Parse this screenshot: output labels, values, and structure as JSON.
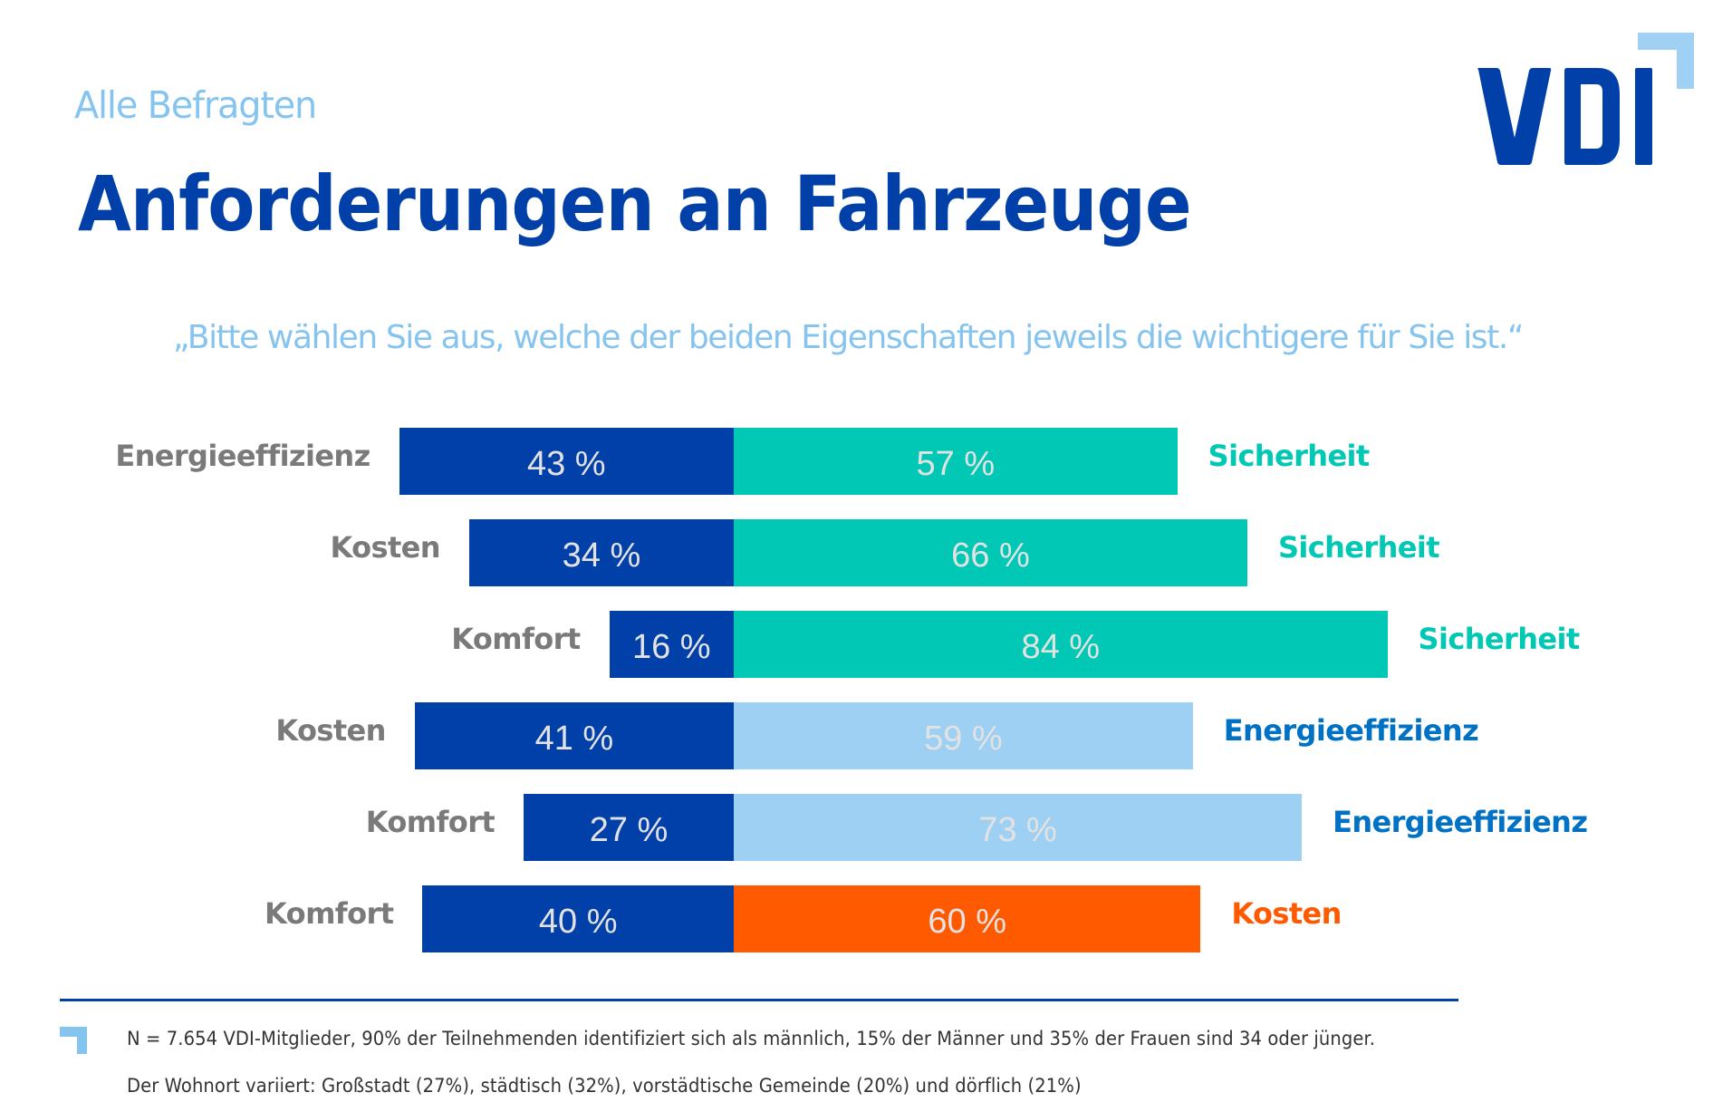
{
  "header": {
    "eyebrow": "Alle Befragten",
    "title": "Anforderungen an Fahrzeuge",
    "question": "„Bitte wählen Sie aus, welche der beiden Eigenschaften jeweils die wichtigere für Sie ist.“",
    "logo_text": "VDI"
  },
  "colors": {
    "dark_blue": "#0040a8",
    "teal": "#00c8b4",
    "light_blue": "#9dd0f2",
    "orange": "#ff5a00",
    "label_gray": "#7a7a7a",
    "energy_label_blue": "#0072c6",
    "accent_light_blue": "#86c4f0"
  },
  "chart_data": {
    "type": "bar",
    "subtype": "diverging-stacked-horizontal",
    "title": "Anforderungen an Fahrzeuge",
    "subtitle": "„Bitte wählen Sie aus, welche der beiden Eigenschaften jeweils die wichtigere für Sie ist.“",
    "unit": "%",
    "xlim": [
      0,
      100
    ],
    "grid": false,
    "rows": [
      {
        "left_label": "Energieeffizienz",
        "left_value": 43,
        "left_text": "43 %",
        "right_label": "Sicherheit",
        "right_value": 57,
        "right_text": "57 %",
        "right_color": "#00c8b4",
        "right_label_color": "#00c8b4"
      },
      {
        "left_label": "Kosten",
        "left_value": 34,
        "left_text": "34 %",
        "right_label": "Sicherheit",
        "right_value": 66,
        "right_text": "66 %",
        "right_color": "#00c8b4",
        "right_label_color": "#00c8b4"
      },
      {
        "left_label": "Komfort",
        "left_value": 16,
        "left_text": "16 %",
        "right_label": "Sicherheit",
        "right_value": 84,
        "right_text": "84 %",
        "right_color": "#00c8b4",
        "right_label_color": "#00c8b4"
      },
      {
        "left_label": "Kosten",
        "left_value": 41,
        "left_text": "41 %",
        "right_label": "Energieeffizienz",
        "right_value": 59,
        "right_text": "59 %",
        "right_color": "#9dd0f2",
        "right_label_color": "#0072c6"
      },
      {
        "left_label": "Komfort",
        "left_value": 27,
        "left_text": "27 %",
        "right_label": "Energieeffizienz",
        "right_value": 73,
        "right_text": "73 %",
        "right_color": "#9dd0f2",
        "right_label_color": "#0072c6"
      },
      {
        "left_label": "Komfort",
        "left_value": 40,
        "left_text": "40 %",
        "right_label": "Kosten",
        "right_value": 60,
        "right_text": "60 %",
        "right_color": "#ff5a00",
        "right_label_color": "#ff5a00"
      }
    ],
    "left_color": "#0040a8"
  },
  "footer": {
    "note_1": "N = 7.654 VDI-Mitglieder, 90% der Teilnehmenden identifiziert sich als männlich, 15% der Männer und 35% der Frauen sind 34 oder jünger.",
    "note_2": "Der Wohnort variiert: Großstadt (27%), städtisch (32%), vorstädtische Gemeinde (20%) und dörflich (21%)"
  }
}
